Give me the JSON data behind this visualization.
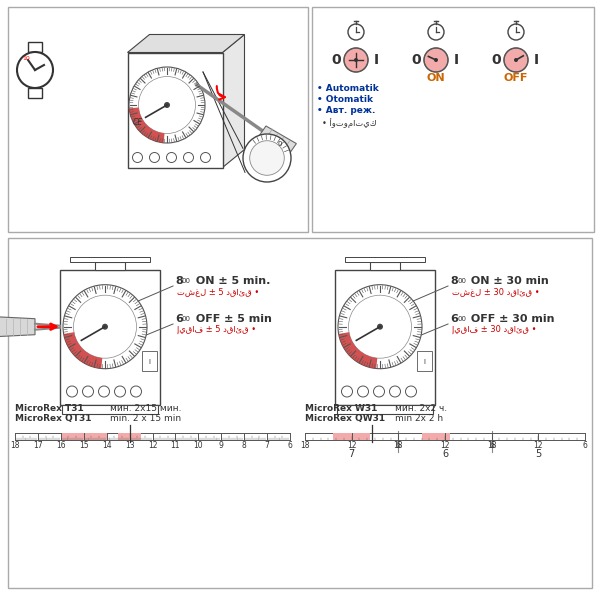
{
  "bg_color": "#ffffff",
  "pink_color": "#f2aaaa",
  "red_color": "#cc0000",
  "dark_color": "#222222",
  "blue_color": "#003399",
  "orange_color": "#cc6600",
  "label_automatik": "• Automatik",
  "label_otomatik": "• Otomatik",
  "label_avt": "• Авт. реж.",
  "label_arabic": "• أوتوماتيك",
  "on_label": "ON",
  "off_label": "OFF",
  "model1_line1": "MicroRex T31",
  "model1_line2": "MicroRex QT31",
  "model1_min": "мин. 2x15 мин.",
  "model1_min2": "min. 2 x 15 min",
  "model2_line1": "MicroRex W31",
  "model2_line2": "MicroRex QW31",
  "model2_min": "мин. 2x2 ч.",
  "model2_min2": "min 2x 2 h",
  "scale1_labels": [
    "18",
    "17",
    "16",
    "15",
    "14",
    "13",
    "12",
    "11",
    "10",
    "9",
    "8",
    "7",
    "6"
  ],
  "scale2_bottom": [
    "7",
    "6",
    "5"
  ],
  "ann1_l1": "8",
  "ann1_sup": "00",
  "ann1_rest": " ON ± 5 min.",
  "ann1_l2": "تشغل ± 5 دقائق •",
  "ann2_l1": "6",
  "ann2_sup": "00",
  "ann2_rest": " OFF ± 5 min",
  "ann2_l2": "إيقاف ± 5 دقائق •",
  "ann3_l1": "8",
  "ann3_sup": "00",
  "ann3_rest": " ON ± 30 min",
  "ann3_l2": "تشغل ± 30 دقائق •",
  "ann4_l1": "6",
  "ann4_sup": "00",
  "ann4_rest": " OFF ± 30 min",
  "ann4_l2": "إيقاف ± 30 دقائق •"
}
